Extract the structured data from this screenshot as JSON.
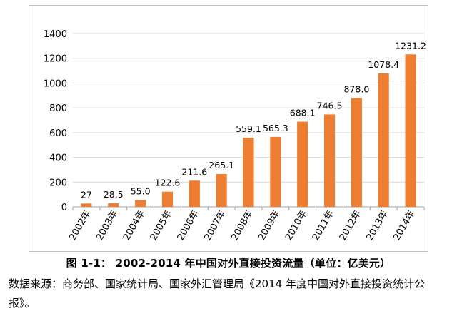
{
  "chart_data": {
    "type": "bar",
    "categories": [
      "2002年",
      "2003年",
      "2004年",
      "2005年",
      "2006年",
      "2007年",
      "2008年",
      "2009年",
      "2010年",
      "2011年",
      "2012年",
      "2013年",
      "2014年"
    ],
    "values": [
      27,
      28.5,
      55.0,
      122.6,
      211.6,
      265.1,
      559.1,
      565.3,
      688.1,
      746.5,
      878.0,
      1078.4,
      1231.2
    ],
    "data_labels": [
      "27",
      "28.5",
      "55.0",
      "122.6",
      "211.6",
      "265.1",
      "559.1",
      "565.3",
      "688.1",
      "746.5",
      "878.0",
      "1078.4",
      "1231.2"
    ],
    "ylim": [
      0,
      1400
    ],
    "yticks": [
      0,
      200,
      400,
      600,
      800,
      1000,
      1200,
      1400
    ],
    "grid": true,
    "legend": "none",
    "bar_color": "#ed7d31",
    "grid_color": "#d9d9d9",
    "axis_color": "#a6a6a6"
  },
  "caption": "图 1-1：   2002-2014 年中国对外直接投资流量（单位：亿美元）",
  "source_note": "数据来源：商务部、国家统计局、国家外汇管理局《2014 年度中国对外直接投资统计公报》。"
}
